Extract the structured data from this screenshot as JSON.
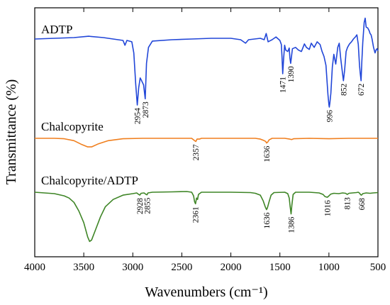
{
  "chart_data": {
    "type": "line",
    "title": "",
    "xlabel": "Wavenumbers (cm⁻¹)",
    "ylabel": "Transmittance (%)",
    "xlim": [
      4000,
      500
    ],
    "x_reversed": true,
    "xticks": [
      4000,
      3500,
      3000,
      2500,
      2000,
      1500,
      1000,
      500
    ],
    "yticks_shown": false,
    "series": [
      {
        "name": "ADTP",
        "color": "#2146d8",
        "offset": 0,
        "points": [
          [
            4000,
            100
          ],
          [
            3800,
            101
          ],
          [
            3600,
            102
          ],
          [
            3450,
            104
          ],
          [
            3300,
            102
          ],
          [
            3200,
            100
          ],
          [
            3100,
            98
          ],
          [
            3080,
            91
          ],
          [
            3060,
            98
          ],
          [
            3010,
            96
          ],
          [
            2990,
            80
          ],
          [
            2970,
            35
          ],
          [
            2954,
            5
          ],
          [
            2940,
            30
          ],
          [
            2925,
            44
          ],
          [
            2910,
            40
          ],
          [
            2890,
            34
          ],
          [
            2873,
            14
          ],
          [
            2860,
            65
          ],
          [
            2840,
            88
          ],
          [
            2800,
            97
          ],
          [
            2600,
            99
          ],
          [
            2400,
            100
          ],
          [
            2200,
            101
          ],
          [
            2000,
            101
          ],
          [
            1900,
            99
          ],
          [
            1850,
            94
          ],
          [
            1820,
            99
          ],
          [
            1700,
            101
          ],
          [
            1660,
            99
          ],
          [
            1640,
            108
          ],
          [
            1620,
            96
          ],
          [
            1580,
            99
          ],
          [
            1540,
            103
          ],
          [
            1500,
            98
          ],
          [
            1485,
            92
          ],
          [
            1478,
            72
          ],
          [
            1471,
            50
          ],
          [
            1462,
            72
          ],
          [
            1452,
            91
          ],
          [
            1440,
            84
          ],
          [
            1420,
            82
          ],
          [
            1405,
            87
          ],
          [
            1398,
            73
          ],
          [
            1390,
            65
          ],
          [
            1382,
            74
          ],
          [
            1372,
            86
          ],
          [
            1340,
            88
          ],
          [
            1310,
            84
          ],
          [
            1280,
            82
          ],
          [
            1250,
            93
          ],
          [
            1230,
            88
          ],
          [
            1200,
            85
          ],
          [
            1180,
            94
          ],
          [
            1150,
            88
          ],
          [
            1120,
            96
          ],
          [
            1090,
            92
          ],
          [
            1070,
            82
          ],
          [
            1050,
            75
          ],
          [
            1030,
            62
          ],
          [
            1010,
            20
          ],
          [
            1000,
            5
          ],
          [
            996,
            2
          ],
          [
            990,
            8
          ],
          [
            980,
            22
          ],
          [
            965,
            60
          ],
          [
            950,
            78
          ],
          [
            930,
            64
          ],
          [
            910,
            88
          ],
          [
            895,
            94
          ],
          [
            880,
            72
          ],
          [
            865,
            55
          ],
          [
            852,
            40
          ],
          [
            840,
            55
          ],
          [
            825,
            82
          ],
          [
            810,
            88
          ],
          [
            790,
            93
          ],
          [
            770,
            96
          ],
          [
            750,
            100
          ],
          [
            730,
            103
          ],
          [
            715,
            106
          ],
          [
            700,
            92
          ],
          [
            688,
            62
          ],
          [
            680,
            50
          ],
          [
            672,
            40
          ],
          [
            664,
            68
          ],
          [
            655,
            95
          ],
          [
            640,
            124
          ],
          [
            630,
            130
          ],
          [
            620,
            117
          ],
          [
            605,
            116
          ],
          [
            590,
            112
          ],
          [
            580,
            108
          ],
          [
            570,
            106
          ],
          [
            560,
            100
          ],
          [
            545,
            88
          ],
          [
            530,
            80
          ],
          [
            520,
            84
          ],
          [
            510,
            86
          ],
          [
            500,
            83
          ]
        ]
      },
      {
        "name": "Chalcopyrite",
        "color": "#f07f1e",
        "offset": 0,
        "points": [
          [
            4000,
            100
          ],
          [
            3800,
            100
          ],
          [
            3700,
            99.5
          ],
          [
            3600,
            97
          ],
          [
            3520,
            92
          ],
          [
            3460,
            89
          ],
          [
            3420,
            89
          ],
          [
            3350,
            93
          ],
          [
            3250,
            97
          ],
          [
            3100,
            99.5
          ],
          [
            2900,
            100
          ],
          [
            2600,
            100
          ],
          [
            2400,
            100
          ],
          [
            2370,
            97
          ],
          [
            2357,
            96
          ],
          [
            2345,
            99
          ],
          [
            2320,
            99
          ],
          [
            2300,
            100
          ],
          [
            2000,
            100
          ],
          [
            1750,
            100
          ],
          [
            1700,
            99
          ],
          [
            1660,
            97
          ],
          [
            1645,
            96
          ],
          [
            1636,
            94
          ],
          [
            1625,
            95
          ],
          [
            1610,
            98
          ],
          [
            1580,
            100
          ],
          [
            1450,
            100
          ],
          [
            1400,
            99
          ],
          [
            1380,
            98.5
          ],
          [
            1360,
            99.5
          ],
          [
            1200,
            100
          ],
          [
            1000,
            99.5
          ],
          [
            800,
            100
          ],
          [
            650,
            100
          ],
          [
            500,
            100
          ]
        ]
      },
      {
        "name": "Chalcopyrite/ADTP",
        "color": "#3e8526",
        "offset": 0,
        "points": [
          [
            4000,
            100
          ],
          [
            3900,
            99
          ],
          [
            3800,
            98
          ],
          [
            3700,
            95
          ],
          [
            3650,
            92
          ],
          [
            3600,
            86
          ],
          [
            3550,
            74
          ],
          [
            3500,
            58
          ],
          [
            3460,
            38
          ],
          [
            3440,
            32
          ],
          [
            3420,
            34
          ],
          [
            3380,
            48
          ],
          [
            3330,
            66
          ],
          [
            3280,
            80
          ],
          [
            3200,
            90
          ],
          [
            3100,
            96
          ],
          [
            3000,
            98
          ],
          [
            2960,
            99
          ],
          [
            2940,
            97
          ],
          [
            2928,
            96
          ],
          [
            2915,
            98.5
          ],
          [
            2885,
            99
          ],
          [
            2865,
            97
          ],
          [
            2855,
            96.5
          ],
          [
            2845,
            99
          ],
          [
            2800,
            100
          ],
          [
            2600,
            100.5
          ],
          [
            2450,
            101
          ],
          [
            2400,
            100
          ],
          [
            2380,
            95
          ],
          [
            2370,
            87
          ],
          [
            2361,
            84
          ],
          [
            2350,
            92
          ],
          [
            2340,
            90
          ],
          [
            2330,
            97
          ],
          [
            2300,
            100
          ],
          [
            2000,
            100
          ],
          [
            1800,
            99.5
          ],
          [
            1750,
            98.5
          ],
          [
            1700,
            96
          ],
          [
            1670,
            88
          ],
          [
            1650,
            80
          ],
          [
            1640,
            77
          ],
          [
            1636,
            76
          ],
          [
            1628,
            78
          ],
          [
            1610,
            87
          ],
          [
            1590,
            96
          ],
          [
            1560,
            99.5
          ],
          [
            1450,
            100
          ],
          [
            1420,
            98
          ],
          [
            1405,
            92
          ],
          [
            1395,
            80
          ],
          [
            1386,
            70
          ],
          [
            1378,
            82
          ],
          [
            1365,
            97
          ],
          [
            1340,
            100
          ],
          [
            1200,
            100
          ],
          [
            1100,
            99
          ],
          [
            1060,
            97
          ],
          [
            1040,
            94
          ],
          [
            1016,
            93
          ],
          [
            1000,
            95
          ],
          [
            980,
            97.5
          ],
          [
            950,
            98.5
          ],
          [
            900,
            98
          ],
          [
            860,
            99
          ],
          [
            830,
            98.5
          ],
          [
            813,
            97
          ],
          [
            795,
            98.5
          ],
          [
            760,
            99
          ],
          [
            720,
            99.5
          ],
          [
            700,
            100
          ],
          [
            690,
            99
          ],
          [
            675,
            96.5
          ],
          [
            668,
            96
          ],
          [
            655,
            98
          ],
          [
            620,
            99
          ],
          [
            580,
            98.5
          ],
          [
            550,
            99
          ],
          [
            500,
            99.5
          ]
        ]
      }
    ],
    "annotations": [
      {
        "series": "ADTP",
        "x": 2954,
        "text": "2954"
      },
      {
        "series": "ADTP",
        "x": 2873,
        "text": "2873"
      },
      {
        "series": "ADTP",
        "x": 1471,
        "text": "1471"
      },
      {
        "series": "ADTP",
        "x": 1390,
        "text": "1390"
      },
      {
        "series": "ADTP",
        "x": 996,
        "text": "996"
      },
      {
        "series": "ADTP",
        "x": 852,
        "text": "852"
      },
      {
        "series": "ADTP",
        "x": 672,
        "text": "672"
      },
      {
        "series": "Chalcopyrite",
        "x": 2357,
        "text": "2357"
      },
      {
        "series": "Chalcopyrite",
        "x": 1636,
        "text": "1636"
      },
      {
        "series": "Chalcopyrite/ADTP",
        "x": 2928,
        "text": "2928"
      },
      {
        "series": "Chalcopyrite/ADTP",
        "x": 2855,
        "text": "2855"
      },
      {
        "series": "Chalcopyrite/ADTP",
        "x": 2361,
        "text": "2361"
      },
      {
        "series": "Chalcopyrite/ADTP",
        "x": 1636,
        "text": "1636"
      },
      {
        "series": "Chalcopyrite/ADTP",
        "x": 1386,
        "text": "1386"
      },
      {
        "series": "Chalcopyrite/ADTP",
        "x": 1016,
        "text": "1016"
      },
      {
        "series": "Chalcopyrite/ADTP",
        "x": 813,
        "text": "813"
      },
      {
        "series": "Chalcopyrite/ADTP",
        "x": 668,
        "text": "668"
      }
    ],
    "grid": false,
    "legend": "none (series labelled directly above each trace)"
  }
}
